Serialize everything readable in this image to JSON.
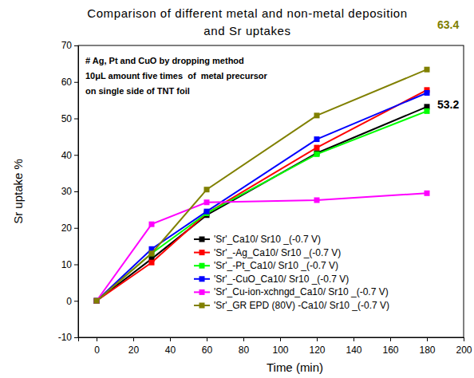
{
  "chart_data": {
    "type": "line",
    "title": [
      "Comparison of different metal and non-metal deposition",
      "and Sr uptakes"
    ],
    "note": [
      "# Ag, Pt and CuO by dropping method",
      "10μL amount five times  of  metal precursor",
      "on single side of TNT foil"
    ],
    "x_label": "Time (min)",
    "y_label": "Sr uptake %",
    "x": [
      0,
      30,
      60,
      120,
      180
    ],
    "series": [
      {
        "name": "'Sr'_Ca10/ Sr10 _(-0.7 V)",
        "color": "#000000",
        "marker": "square",
        "line_style": "solid",
        "values": [
          0,
          11.5,
          23.5,
          40.5,
          53.2
        ]
      },
      {
        "name": "'Sr'_-Ag_Ca10/ Sr10 _(-0.7 V)",
        "color": "#ff0000",
        "marker": "square",
        "line_style": "solid",
        "values": [
          0,
          10.5,
          24,
          42,
          57.8
        ]
      },
      {
        "name": "'Sr'_-Pt_Ca10/ Sr10 _(-0.7 V)",
        "color": "#00ff00",
        "marker": "square",
        "line_style": "solid",
        "values": [
          0,
          13,
          24,
          40.2,
          52
        ]
      },
      {
        "name": "'Sr'_-CuO_Ca10/ Sr10 _(-0.7 V)",
        "color": "#0000ff",
        "marker": "square",
        "line_style": "solid",
        "values": [
          0,
          14.2,
          24.5,
          44.3,
          57
        ]
      },
      {
        "name": "'Sr'_Cu-ion-xchngd_Ca10/ Sr10 _(-0.7 V)",
        "color": "#ff00ff",
        "marker": "square",
        "line_style": "solid",
        "values": [
          0,
          21,
          27,
          27.6,
          29.5
        ]
      },
      {
        "name": "'Sr'_GR EPD (80V) -Ca10/ Sr10 _(-0.7 V)",
        "color": "#808000",
        "marker": "square",
        "line_style": "solid",
        "values": [
          0,
          13,
          30.5,
          50.8,
          63.4
        ]
      }
    ],
    "annotations": [
      {
        "text": "63.4",
        "color": "#808000"
      },
      {
        "text": "53.2",
        "color": "#000000"
      }
    ],
    "xlim": [
      -10,
      200
    ],
    "xticks": [
      0,
      20,
      40,
      60,
      80,
      100,
      120,
      140,
      160,
      180,
      200
    ],
    "ylim": [
      -10,
      70
    ],
    "yticks": [
      -10,
      0,
      10,
      20,
      30,
      40,
      50,
      60,
      70
    ],
    "grid": false,
    "legend": "lower right"
  }
}
